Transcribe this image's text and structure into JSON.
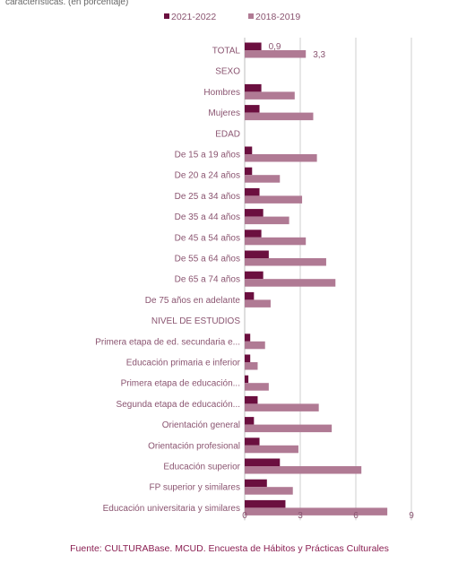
{
  "chart_data": {
    "type": "bar",
    "subtitle": "características. (en porcentaje)",
    "legend_position": "top",
    "grid": true,
    "xlim": [
      0,
      9
    ],
    "xticks": [
      0,
      3,
      6,
      9
    ],
    "categories": [
      "TOTAL",
      "SEXO",
      "Hombres",
      "Mujeres",
      "EDAD",
      "De 15 a 19 años",
      "De 20 a 24 años",
      "De 25 a 34 años",
      "De 35 a 44 años",
      "De 45 a 54 años",
      "De 55 a 64 años",
      "De 65 a 74 años",
      "De 75 años en adelante",
      "NIVEL DE ESTUDIOS",
      "Primera etapa de ed. secundaria e...",
      "Educación primaria e inferior",
      "Primera etapa de educación...",
      "Segunda etapa de educación...",
      "Orientación general",
      "Orientación profesional",
      "Educación superior",
      "FP superior y similares",
      "Educación universitaria y similares"
    ],
    "series": [
      {
        "name": "2021-2022",
        "color": "#6b0f3f",
        "values": [
          0.9,
          null,
          0.9,
          0.8,
          null,
          0.4,
          0.4,
          0.8,
          1.0,
          0.9,
          1.3,
          1.0,
          0.5,
          null,
          0.3,
          0.3,
          0.2,
          0.7,
          0.5,
          0.8,
          1.9,
          1.2,
          2.2
        ]
      },
      {
        "name": "2018-2019",
        "color": "#b07a94",
        "values": [
          3.3,
          null,
          2.7,
          3.7,
          null,
          3.9,
          1.9,
          3.1,
          2.4,
          3.3,
          4.4,
          4.9,
          1.4,
          null,
          1.1,
          0.7,
          1.3,
          4.0,
          4.7,
          2.9,
          6.3,
          2.6,
          7.7
        ]
      }
    ],
    "data_labels": [
      {
        "category_index": 0,
        "series_index": 0,
        "text": "0,9"
      },
      {
        "category_index": 0,
        "series_index": 1,
        "text": "3,3"
      }
    ]
  },
  "source": "Fuente: CULTURABase. MCUD. Encuesta de Hábitos y Prácticas Culturales"
}
